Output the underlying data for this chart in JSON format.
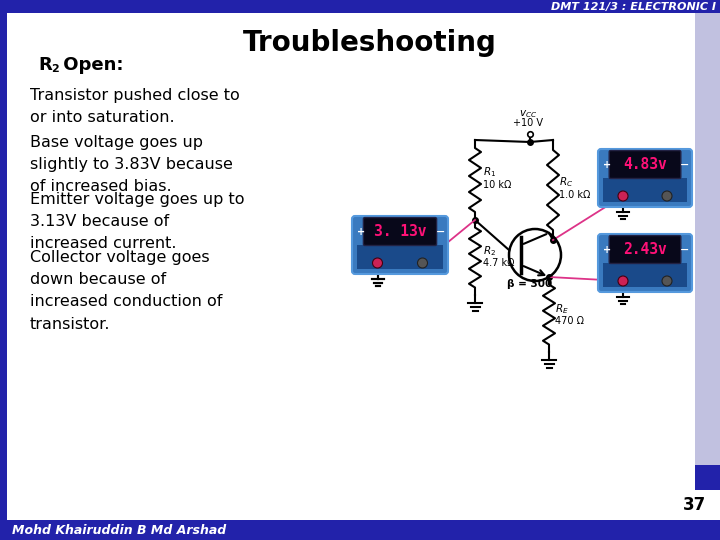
{
  "header_text": "DMT 121/3 : ELECTRONIC I",
  "title": "Troubleshooting",
  "bg_color": "#ffffff",
  "header_bg": "#2222aa",
  "header_text_color": "#ffffff",
  "border_color": "#2222aa",
  "page_number": "37",
  "footer_text": "Mohd Khairuddin B Md Arshad",
  "bullet1": "Transistor pushed close to\nor into saturation.",
  "bullet2": "Base voltage goes up\nslightly to 3.83V because\nof increased bias.",
  "bullet3": "Emitter voltage goes up to\n3.13V because of\nincreased current.",
  "bullet4": "Collector voltage goes\ndown because of\nincreased conduction of\ntransistor.",
  "title_fontsize": 20,
  "subtitle_fontsize": 13,
  "bullet_fontsize": 11.5,
  "header_fontsize": 8,
  "footer_fontsize": 9,
  "meter1_val": "3. 13v",
  "meter2_val": "4.83v",
  "meter3_val": "2.43v",
  "meter_color_top": "#3a7abf",
  "meter_color_bot": "#1a4a80",
  "meter_text_color": "#ff1177",
  "meter_display_bg": "#050510",
  "wire_color": "#000000",
  "pink_wire": "#dd3388"
}
